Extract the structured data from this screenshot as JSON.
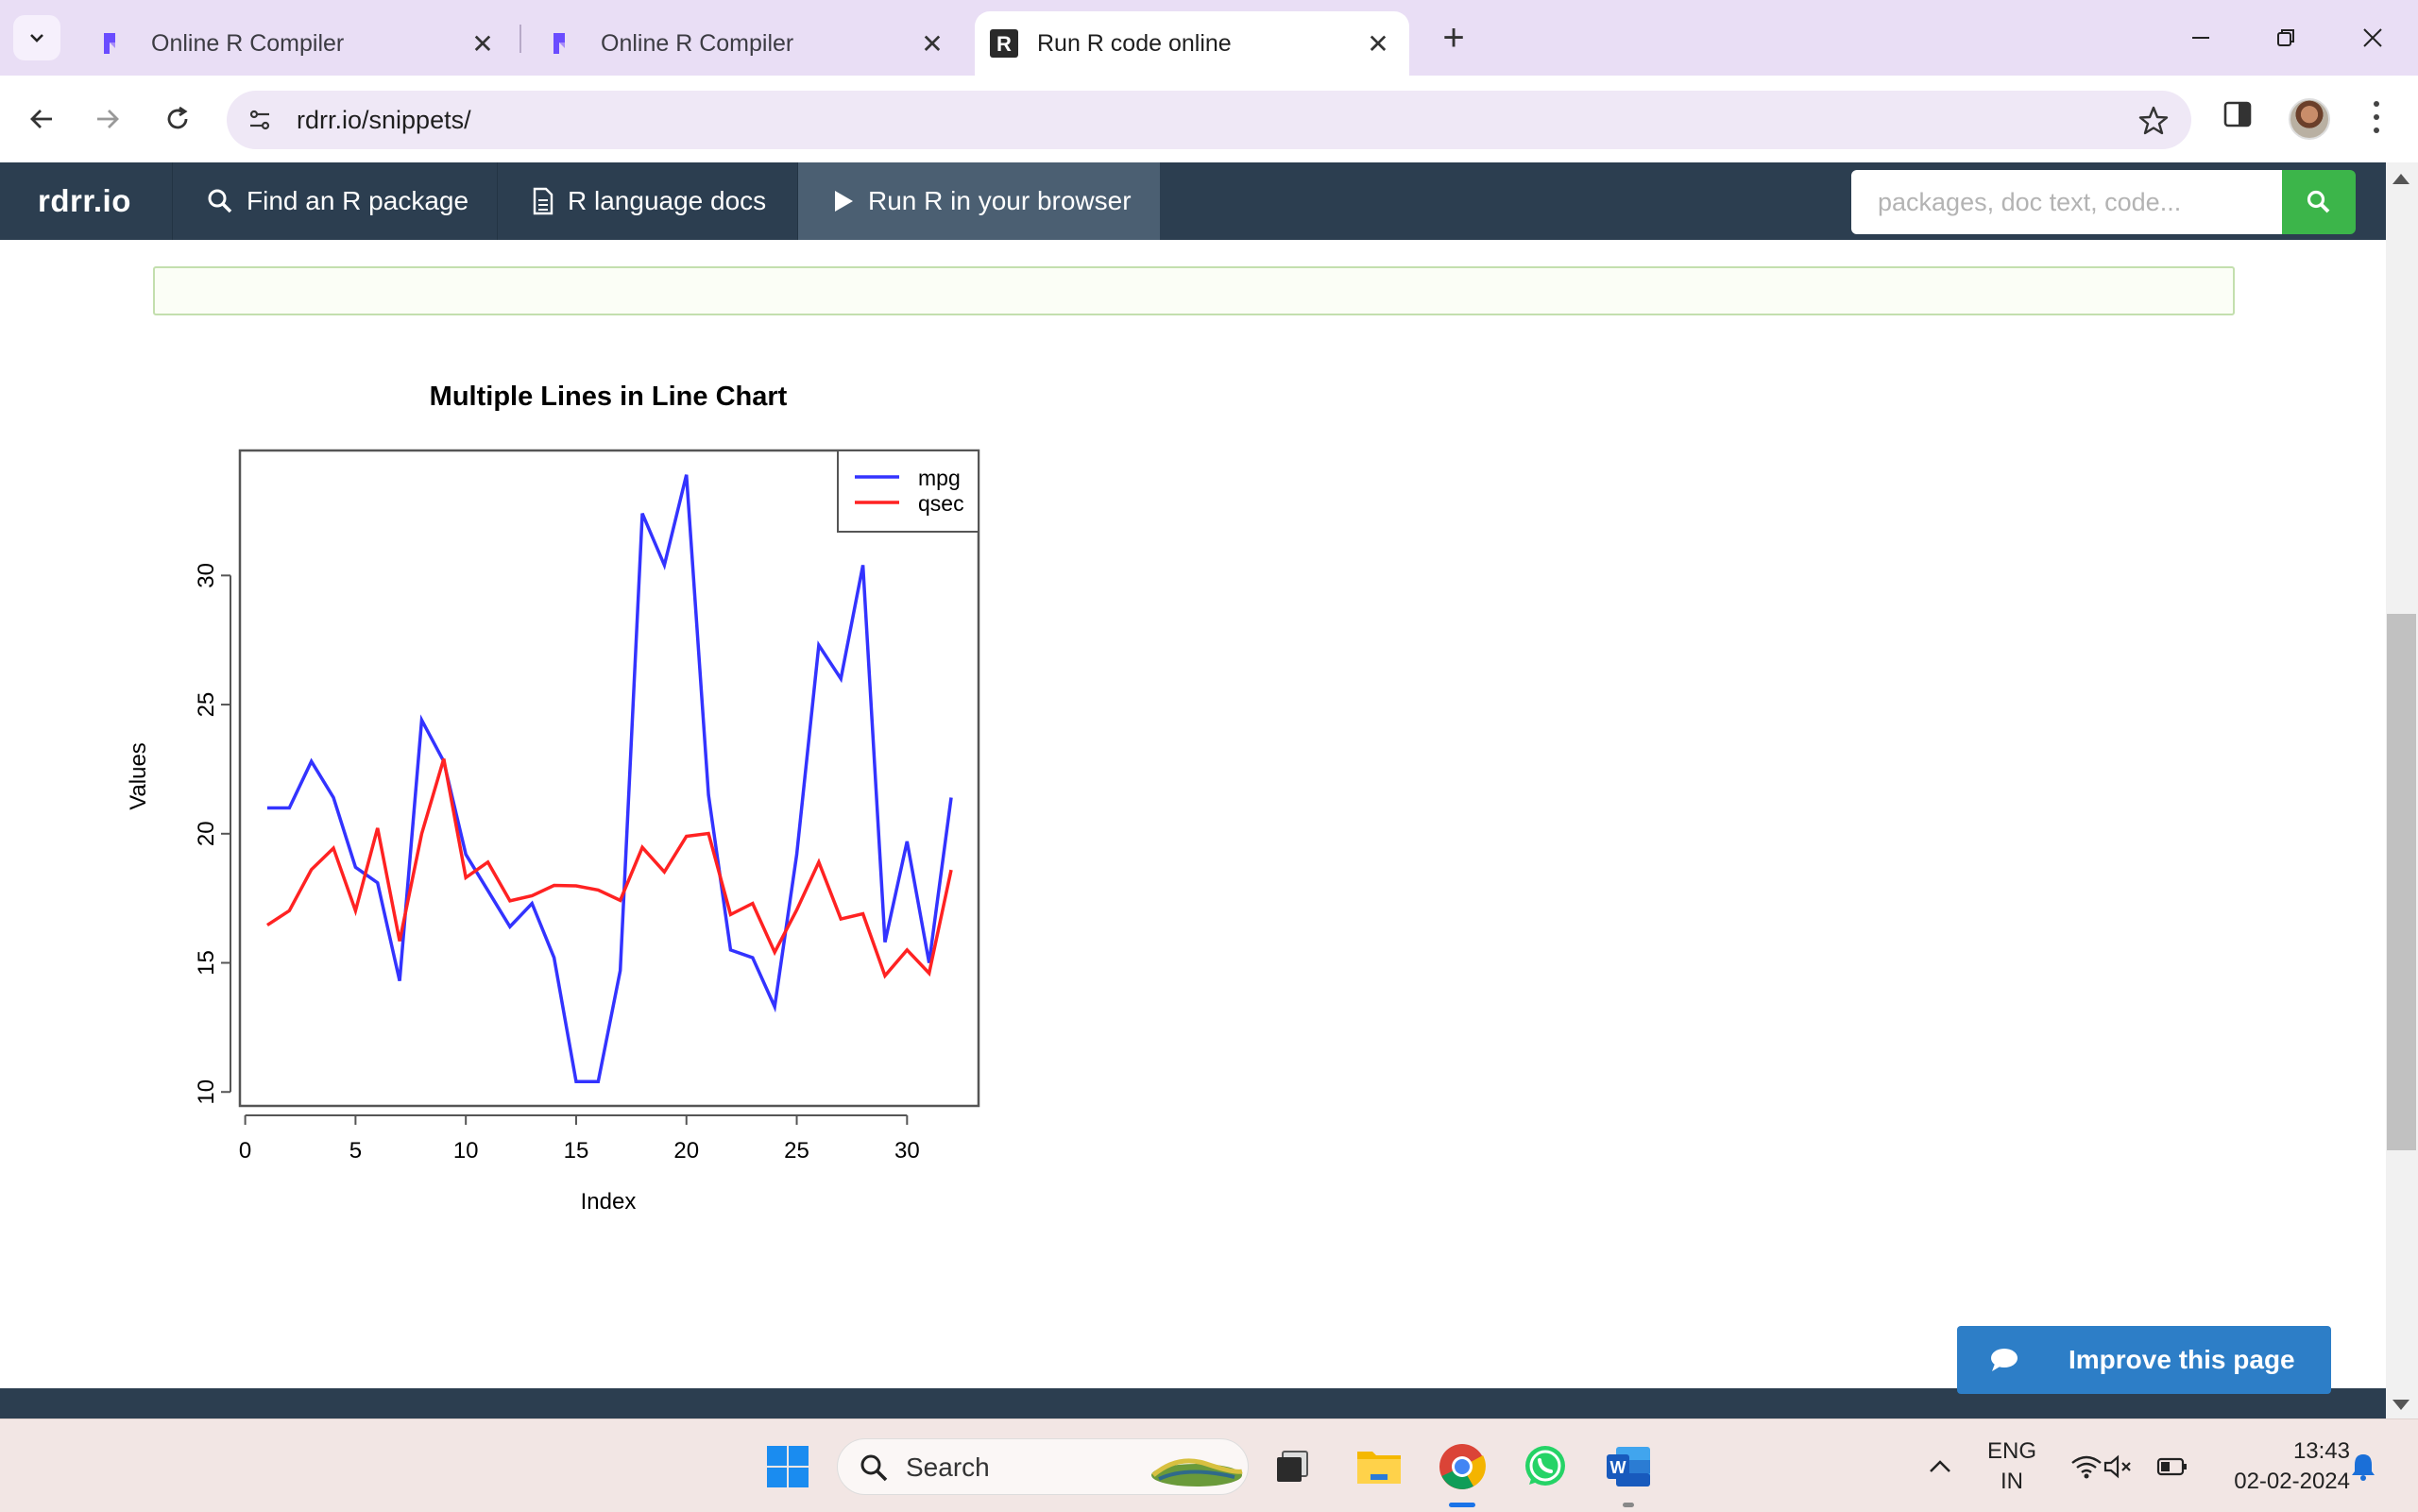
{
  "tabs": [
    {
      "title": "Online R Compiler",
      "favicon": "replit-like-icon"
    },
    {
      "title": "Online R Compiler",
      "favicon": "replit-like-icon"
    },
    {
      "title": "Run R code online",
      "favicon": "r-logo-icon",
      "active": true
    }
  ],
  "address": {
    "url": "rdrr.io/snippets/"
  },
  "site": {
    "brand": "rdrr.io",
    "nav": [
      {
        "label": "Find an R package",
        "icon": "search-icon"
      },
      {
        "label": "R language docs",
        "icon": "document-icon"
      },
      {
        "label": "Run R in your browser",
        "icon": "play-icon",
        "active": true
      }
    ],
    "search_placeholder": "packages, doc text, code...",
    "improve_label": "Improve this page"
  },
  "chart_data": {
    "type": "line",
    "title": "Multiple Lines in Line Chart",
    "xlabel": "Index",
    "ylabel": "Values",
    "x": [
      1,
      2,
      3,
      4,
      5,
      6,
      7,
      8,
      9,
      10,
      11,
      12,
      13,
      14,
      15,
      16,
      17,
      18,
      19,
      20,
      21,
      22,
      23,
      24,
      25,
      26,
      27,
      28,
      29,
      30,
      31,
      32
    ],
    "xlim": [
      0,
      33
    ],
    "ylim": [
      10,
      34
    ],
    "xticks": [
      0,
      5,
      10,
      15,
      20,
      25,
      30
    ],
    "yticks": [
      10,
      15,
      20,
      25,
      30
    ],
    "legend_position": "top-right",
    "series": [
      {
        "name": "mpg",
        "color": "#3333ff",
        "values": [
          21.0,
          21.0,
          22.8,
          21.4,
          18.7,
          18.1,
          14.3,
          24.4,
          22.8,
          19.2,
          17.8,
          16.4,
          17.3,
          15.2,
          10.4,
          10.4,
          14.7,
          32.4,
          30.4,
          33.9,
          21.5,
          15.5,
          15.2,
          13.3,
          19.2,
          27.3,
          26.0,
          30.4,
          15.8,
          19.7,
          15.0,
          21.4
        ]
      },
      {
        "name": "qsec",
        "color": "#ff2222",
        "values": [
          16.46,
          17.02,
          18.61,
          19.44,
          17.02,
          20.22,
          15.84,
          20.0,
          22.9,
          18.3,
          18.9,
          17.4,
          17.6,
          18.0,
          17.98,
          17.82,
          17.42,
          19.47,
          18.52,
          19.9,
          20.01,
          16.87,
          17.3,
          15.41,
          17.05,
          18.9,
          16.7,
          16.9,
          14.5,
          15.5,
          14.6,
          18.6
        ]
      }
    ]
  },
  "taskbar": {
    "search_label": "Search",
    "lang": "ENG",
    "region": "IN",
    "time": "13:43",
    "date": "02-02-2024"
  }
}
